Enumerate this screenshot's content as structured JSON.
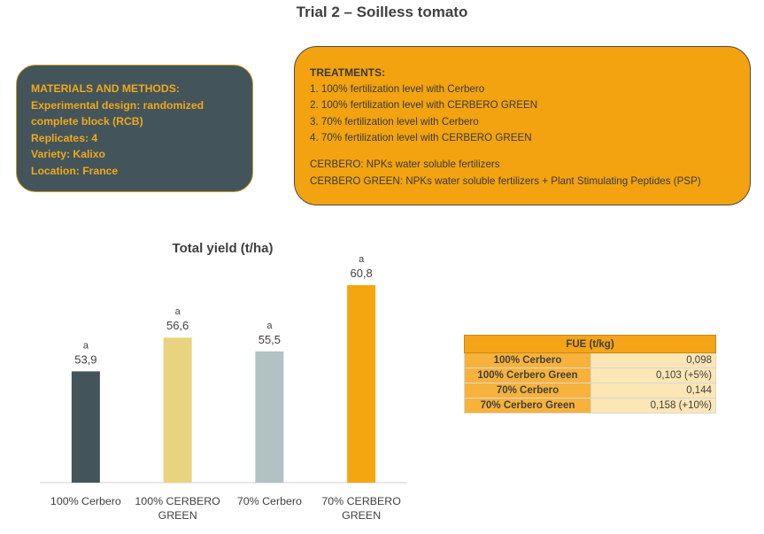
{
  "title": "Trial 2 –  Soilless tomato",
  "materials": {
    "lines": [
      "MATERIALS AND METHODS:",
      "Experimental design: randomized",
      "complete block (RCB)",
      "Replicates: 4",
      "Variety: Kalixo",
      "Location: France"
    ]
  },
  "treatments": {
    "heading": "TREATMENTS:",
    "items": [
      "1. 100%  fertilization level with Cerbero",
      "2. 100%  fertilization level with CERBERO GREEN",
      "3. 70% fertilization level with Cerbero",
      "4. 70% fertilization level with CERBERO GREEN"
    ],
    "definitions": [
      "CERBERO: NPKs water soluble fertilizers",
      "CERBERO GREEN: NPKs water soluble  fertilizers + Plant Stimulating Peptides  (PSP)"
    ]
  },
  "chart_data": {
    "type": "bar",
    "title": "Total yield (t/ha)",
    "categories": [
      "100% Cerbero",
      "100% CERBERO GREEN",
      "70% Cerbero",
      "70% CERBERO GREEN"
    ],
    "category_lines": [
      [
        "100% Cerbero"
      ],
      [
        "100% CERBERO",
        "GREEN"
      ],
      [
        "70% Cerbero"
      ],
      [
        "70% CERBERO",
        "GREEN"
      ]
    ],
    "values": [
      53.9,
      56.6,
      55.5,
      60.8
    ],
    "value_labels": [
      "53,9",
      "56,6",
      "55,5",
      "60,8"
    ],
    "significance_letters": [
      "a",
      "a",
      "a",
      "a"
    ],
    "colors": [
      "#43555a",
      "#e8d47e",
      "#b2c1c3",
      "#f3a60f"
    ],
    "ylim": [
      45,
      62
    ],
    "grid": false,
    "legend": "none"
  },
  "fue_table": {
    "header": "FUE (t/kg)",
    "rows": [
      {
        "label": "100% Cerbero",
        "value": "0,098"
      },
      {
        "label": "100% Cerbero Green",
        "value": "0,103  (+5%)"
      },
      {
        "label": "70% Cerbero",
        "value": "0,144"
      },
      {
        "label": "70% Cerbero Green",
        "value": "0,158  (+10%)"
      }
    ]
  }
}
